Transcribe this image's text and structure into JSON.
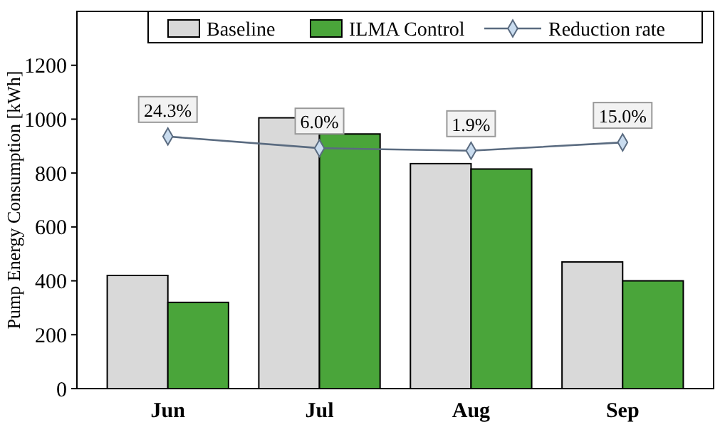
{
  "chart_data": {
    "type": "bar",
    "ylabel": "Pump Energy Consumption [kWh]",
    "categories": [
      "Jun",
      "Jul",
      "Aug",
      "Sep"
    ],
    "series": [
      {
        "name": "Baseline",
        "color": "#d9d9d9",
        "values": [
          420,
          1005,
          835,
          470
        ]
      },
      {
        "name": "ILMA Control",
        "color": "#4aa53a",
        "values": [
          320,
          945,
          815,
          400
        ]
      },
      {
        "name": "Reduction rate",
        "type": "line",
        "axis": "y2",
        "color": "#5a6b80",
        "marker": "diamond",
        "values": [
          24.3,
          6.0,
          1.9,
          15.0
        ],
        "value_labels": [
          "24.3%",
          "6.0%",
          "1.9%",
          "15.0%"
        ]
      }
    ],
    "ylim": [
      0,
      1400
    ],
    "yticks": [
      0,
      200,
      400,
      600,
      800,
      1000,
      1200
    ],
    "y2lim": [
      -372,
      221
    ],
    "tick_labels": "xy",
    "legend": "top",
    "grid": false
  }
}
